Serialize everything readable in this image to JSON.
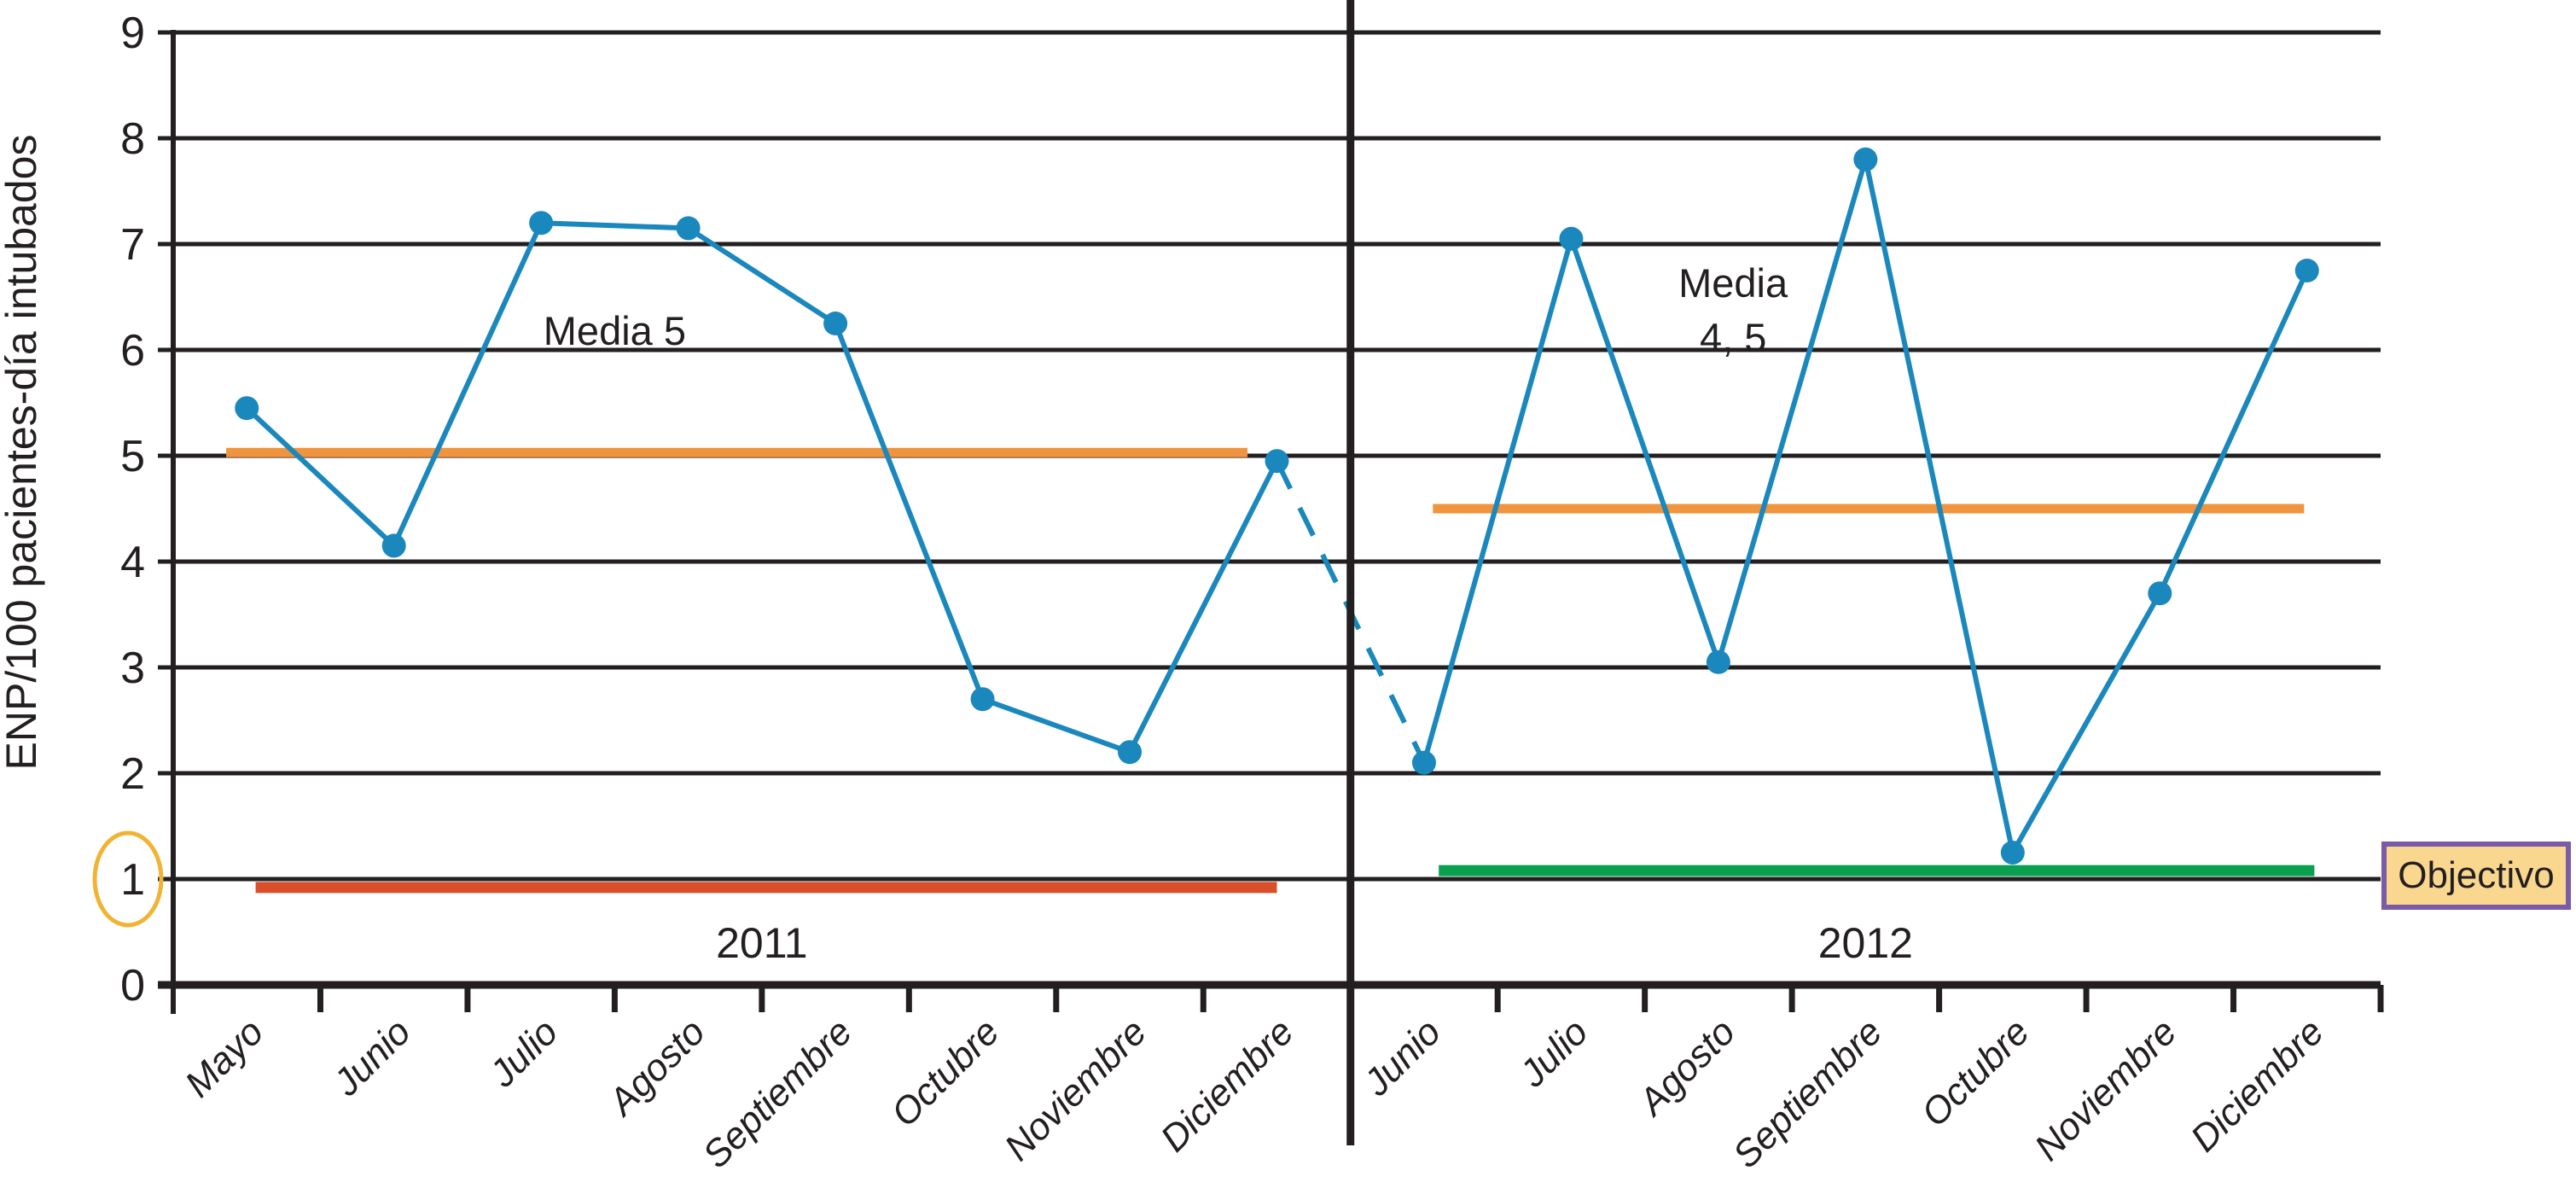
{
  "chart_data": {
    "type": "line",
    "title": "",
    "ylabel": "ENP/100 pacientes-día intubados",
    "xlabel": "",
    "ylim": [
      0,
      9
    ],
    "yticks": [
      0,
      1,
      2,
      3,
      4,
      5,
      6,
      7,
      8,
      9
    ],
    "grid": true,
    "legend": null,
    "series_color": "#1A87BD",
    "marker": "circle",
    "panels": [
      {
        "year_label": "2011",
        "categories": [
          "Mayo",
          "Junio",
          "Julio",
          "Agosto",
          "Septiembre",
          "Octubre",
          "Noviembre",
          "Diciembre"
        ],
        "values": [
          5.45,
          4.15,
          7.2,
          7.15,
          6.25,
          2.7,
          2.2,
          4.95
        ],
        "media": {
          "label_lines": [
            "Media 5"
          ],
          "value": 5.03,
          "extent_slots": [
            0.36,
            7.3
          ],
          "label_anchor": {
            "slot": 2.5,
            "value": 6.05
          }
        },
        "objetivo": {
          "value": 0.92,
          "color": "#D94F29",
          "extent_slots": [
            0.56,
            7.5
          ]
        }
      },
      {
        "year_label": "2012",
        "categories": [
          "Junio",
          "Julio",
          "Agosto",
          "Septiembre",
          "Octubre",
          "Noviembre",
          "Diciembre"
        ],
        "values": [
          2.1,
          7.05,
          3.05,
          7.8,
          1.25,
          3.7,
          6.75
        ],
        "media": {
          "label_lines": [
            "Media",
            "4, 5"
          ],
          "value": 4.5,
          "extent_slots": [
            0.56,
            6.48
          ],
          "label_anchor": {
            "slot": 2.1,
            "value": 6.5
          }
        },
        "objetivo": {
          "value": 1.08,
          "color": "#0AA04F",
          "extent_slots": [
            0.6,
            6.55
          ]
        }
      }
    ],
    "connector": {
      "style": "dashed",
      "from": {
        "panel": 0,
        "index": 7
      },
      "to": {
        "panel": 1,
        "index": 0
      }
    },
    "annotations": {
      "highlighted_ytick": "1"
    },
    "colors": {
      "media_line": "#F0943E",
      "axis": "#231F20",
      "highlight_ellipse": "#F0B434"
    }
  },
  "objetivo_badge": {
    "label": "Objectivo",
    "bg": "#FAD78F",
    "border": "#7A5BA5"
  }
}
